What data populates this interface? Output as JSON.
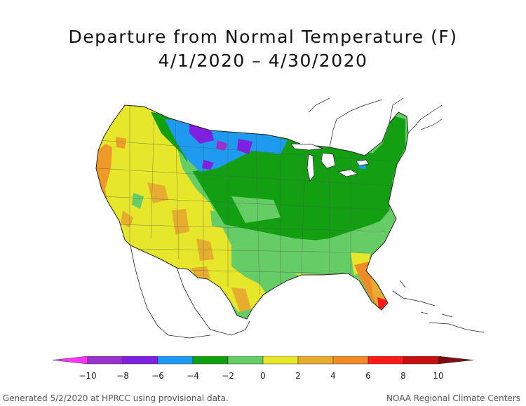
{
  "title_line1": "Departure from Normal Temperature (F)",
  "title_line2": "4/1/2020 – 4/30/2020",
  "legend": {
    "ticks": [
      "−10",
      "−8",
      "−6",
      "−4",
      "−2",
      "0",
      "2",
      "4",
      "6",
      "8",
      "10"
    ],
    "colors": [
      "#9933cc",
      "#7f1fe0",
      "#1e9bf0",
      "#12a012",
      "#66cc66",
      "#e6e62a",
      "#e6ad2e",
      "#f08c28",
      "#ff1a1a",
      "#c81010"
    ],
    "low_color": "#ff33ff",
    "high_color": "#801010"
  },
  "footer_left": "Generated 5/2/2020 at HPRCC using provisional data.",
  "footer_right": "NOAA Regional Climate Centers"
}
